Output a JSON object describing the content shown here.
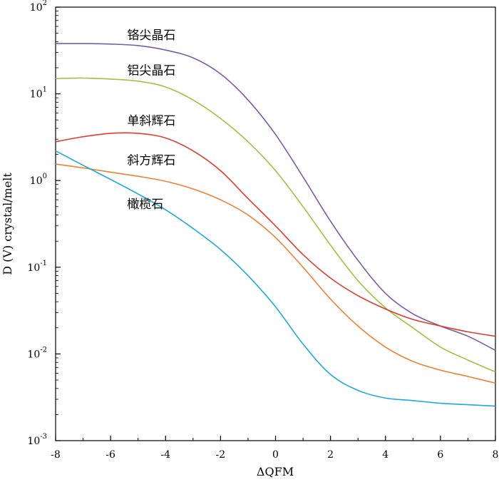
{
  "chart_data": {
    "type": "line",
    "xlabel": "ΔQFM",
    "ylabel": "D (V) crystal/melt",
    "xlim": [
      -8,
      8
    ],
    "ylim": [
      0.001,
      100
    ],
    "yscale": "log",
    "grid": false,
    "x_ticks": [
      "-8",
      "-6",
      "-4",
      "-2",
      "0",
      "2",
      "4",
      "6",
      "8"
    ],
    "y_ticks": [
      {
        "base": "10",
        "exp": "2",
        "value": 100
      },
      {
        "base": "10",
        "exp": "1",
        "value": 10
      },
      {
        "base": "10",
        "exp": "0",
        "value": 1
      },
      {
        "base": "10",
        "exp": "-1",
        "value": 0.1
      },
      {
        "base": "10",
        "exp": "-2",
        "value": 0.01
      },
      {
        "base": "10",
        "exp": "-3",
        "value": 0.001
      }
    ],
    "series": [
      {
        "name": "铬尖晶石",
        "color": "#7b5aa6",
        "x": [
          -8,
          -7,
          -6,
          -5,
          -4,
          -3,
          -2,
          -1,
          0,
          1,
          2,
          3,
          4,
          5,
          6,
          7,
          8
        ],
        "y": [
          38,
          38,
          37.5,
          36,
          32,
          26,
          17,
          8.5,
          3.4,
          1.1,
          0.34,
          0.12,
          0.05,
          0.029,
          0.021,
          0.016,
          0.011
        ]
      },
      {
        "name": "铝尖晶石",
        "color": "#9cc43c",
        "x": [
          -8,
          -7,
          -6,
          -5,
          -4,
          -3,
          -2,
          -1,
          0,
          1,
          2,
          3,
          4,
          5,
          6,
          7,
          8
        ],
        "y": [
          15,
          15.2,
          14.8,
          14,
          12,
          8.5,
          5.2,
          2.8,
          1.3,
          0.5,
          0.18,
          0.07,
          0.034,
          0.02,
          0.012,
          0.0085,
          0.0062
        ]
      },
      {
        "name": "单斜辉石",
        "color": "#e03c2e",
        "x": [
          -8,
          -7,
          -6,
          -5,
          -4,
          -3,
          -2,
          -1,
          0,
          1,
          2,
          3,
          4,
          5,
          6,
          7,
          8
        ],
        "y": [
          2.8,
          3.2,
          3.5,
          3.5,
          3.1,
          2.2,
          1.3,
          0.62,
          0.3,
          0.14,
          0.075,
          0.047,
          0.033,
          0.025,
          0.021,
          0.018,
          0.016
        ]
      },
      {
        "name": "斜方辉石",
        "color": "#f08030",
        "x": [
          -8,
          -7,
          -6,
          -5,
          -4,
          -3,
          -2,
          -1,
          0,
          1,
          2,
          3,
          4,
          5,
          6,
          7,
          8
        ],
        "y": [
          1.55,
          1.4,
          1.25,
          1.12,
          0.98,
          0.8,
          0.6,
          0.4,
          0.22,
          0.1,
          0.043,
          0.021,
          0.012,
          0.0082,
          0.0065,
          0.0055,
          0.0046
        ]
      },
      {
        "name": "橄榄石",
        "color": "#1ea8dc",
        "x": [
          -8,
          -7,
          -6,
          -5,
          -4,
          -3,
          -2,
          -1,
          0,
          1,
          2,
          3,
          4,
          5,
          6,
          7,
          8
        ],
        "y": [
          2.2,
          1.5,
          1.03,
          0.7,
          0.46,
          0.28,
          0.16,
          0.08,
          0.035,
          0.013,
          0.0058,
          0.0038,
          0.0031,
          0.0029,
          0.0027,
          0.0026,
          0.0025
        ]
      }
    ]
  }
}
